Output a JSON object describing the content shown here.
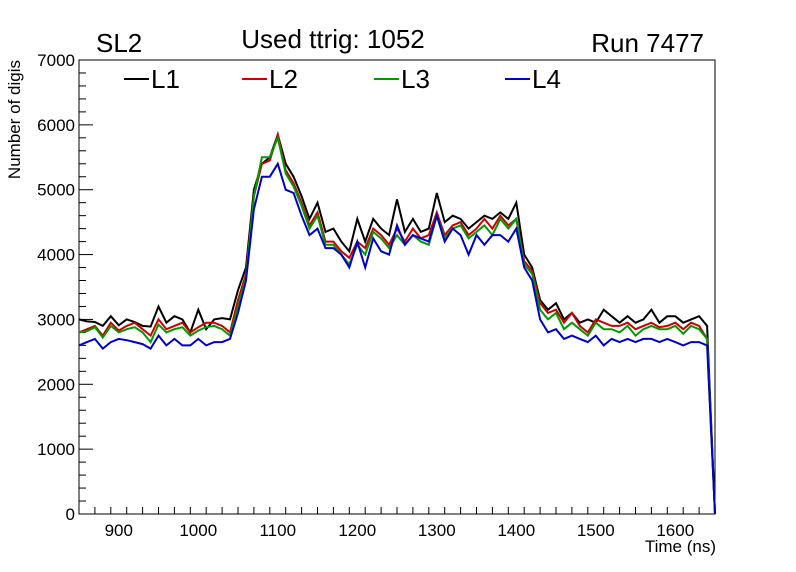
{
  "header": {
    "left": "SL2",
    "center": "Used ttrig: 1052",
    "right": "Run 7477"
  },
  "chart_data": {
    "type": "line",
    "xlabel": "Time (ns)",
    "ylabel": "Number of digis",
    "xlim": [
      850,
      1650
    ],
    "ylim": [
      0,
      7000
    ],
    "x_ticks": [
      900,
      1000,
      1100,
      1200,
      1300,
      1400,
      1500,
      1600
    ],
    "y_ticks": [
      0,
      1000,
      2000,
      3000,
      4000,
      5000,
      6000,
      7000
    ],
    "x": [
      850,
      860,
      870,
      880,
      890,
      900,
      910,
      920,
      930,
      940,
      950,
      960,
      970,
      980,
      990,
      1000,
      1010,
      1020,
      1030,
      1040,
      1050,
      1060,
      1070,
      1080,
      1090,
      1100,
      1110,
      1120,
      1130,
      1140,
      1150,
      1160,
      1170,
      1180,
      1190,
      1200,
      1210,
      1220,
      1230,
      1240,
      1250,
      1260,
      1270,
      1280,
      1290,
      1300,
      1310,
      1320,
      1330,
      1340,
      1350,
      1360,
      1370,
      1380,
      1390,
      1400,
      1410,
      1420,
      1430,
      1440,
      1450,
      1460,
      1470,
      1480,
      1490,
      1500,
      1510,
      1520,
      1530,
      1540,
      1550,
      1560,
      1570,
      1580,
      1590,
      1600,
      1610,
      1620,
      1630,
      1640,
      1650
    ],
    "legend_position": "top",
    "series": [
      {
        "name": "L1",
        "color": "#000000",
        "values": [
          3000,
          2970,
          2960,
          2900,
          3050,
          2910,
          3000,
          2960,
          2900,
          2890,
          3200,
          2950,
          3050,
          3000,
          2800,
          3150,
          2850,
          3000,
          3020,
          3000,
          3450,
          3800,
          5000,
          5400,
          5500,
          5850,
          5400,
          5200,
          4900,
          4550,
          4800,
          4350,
          4400,
          4200,
          4050,
          4550,
          4200,
          4550,
          4400,
          4300,
          4850,
          4350,
          4550,
          4350,
          4400,
          4950,
          4500,
          4600,
          4550,
          4400,
          4500,
          4600,
          4550,
          4650,
          4550,
          4800,
          4000,
          3800,
          3300,
          3150,
          3250,
          3000,
          3100,
          2950,
          3000,
          2950,
          3150,
          3050,
          2950,
          3050,
          2950,
          3000,
          3150,
          2950,
          3050,
          3050,
          2950,
          3000,
          3050,
          2900,
          0
        ]
      },
      {
        "name": "L2",
        "color": "#cc0000",
        "values": [
          2800,
          2850,
          2900,
          2750,
          2950,
          2830,
          2900,
          2950,
          2850,
          2750,
          3000,
          2850,
          2900,
          2950,
          2800,
          2880,
          2950,
          2950,
          2900,
          2800,
          3300,
          3700,
          4900,
          5400,
          5450,
          5850,
          5300,
          5100,
          4800,
          4450,
          4650,
          4200,
          4200,
          4050,
          3950,
          4200,
          4100,
          4400,
          4300,
          4150,
          4400,
          4200,
          4400,
          4250,
          4300,
          4650,
          4300,
          4450,
          4500,
          4300,
          4400,
          4550,
          4400,
          4600,
          4450,
          4550,
          3900,
          3750,
          3250,
          3100,
          3150,
          2950,
          3100,
          2900,
          2800,
          3000,
          2950,
          2900,
          2900,
          2950,
          2850,
          2900,
          2950,
          2880,
          2900,
          2950,
          2850,
          2950,
          2900,
          2700,
          0
        ]
      },
      {
        "name": "L3",
        "color": "#009900",
        "values": [
          2800,
          2820,
          2880,
          2720,
          2900,
          2800,
          2850,
          2880,
          2800,
          2650,
          2920,
          2800,
          2850,
          2880,
          2750,
          2830,
          2880,
          2900,
          2850,
          2750,
          3200,
          3650,
          4900,
          5500,
          5500,
          5800,
          5250,
          5050,
          4750,
          4400,
          4600,
          4150,
          4150,
          4000,
          3850,
          4150,
          4000,
          4350,
          4250,
          4100,
          4300,
          4150,
          4300,
          4200,
          4150,
          4600,
          4250,
          4400,
          4450,
          4250,
          4350,
          4450,
          4300,
          4550,
          4400,
          4550,
          3850,
          3700,
          3150,
          3000,
          3100,
          2850,
          2950,
          2850,
          2750,
          2950,
          2850,
          2850,
          2800,
          2900,
          2750,
          2850,
          2900,
          2850,
          2850,
          2900,
          2780,
          2900,
          2850,
          2700,
          0
        ]
      },
      {
        "name": "L4",
        "color": "#0000cc",
        "values": [
          2600,
          2650,
          2700,
          2550,
          2650,
          2700,
          2680,
          2650,
          2620,
          2550,
          2750,
          2600,
          2700,
          2600,
          2600,
          2700,
          2600,
          2650,
          2650,
          2700,
          3100,
          3600,
          4700,
          5200,
          5200,
          5400,
          5000,
          4950,
          4600,
          4300,
          4400,
          4100,
          4100,
          4000,
          3800,
          4200,
          3800,
          4250,
          4050,
          4000,
          4450,
          4150,
          4300,
          4250,
          4200,
          4600,
          4200,
          4400,
          4300,
          4000,
          4300,
          4150,
          4300,
          4300,
          4200,
          4400,
          3800,
          3600,
          3000,
          2800,
          2850,
          2700,
          2750,
          2700,
          2650,
          2750,
          2600,
          2700,
          2650,
          2700,
          2650,
          2700,
          2700,
          2650,
          2700,
          2650,
          2600,
          2650,
          2650,
          2600,
          0
        ]
      }
    ]
  }
}
